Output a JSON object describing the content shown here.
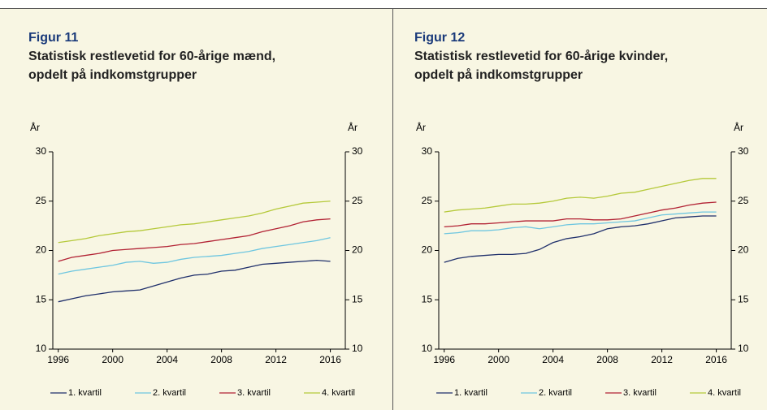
{
  "chart_data": [
    {
      "type": "line",
      "figure_label": "Figur 11",
      "title": [
        "Statistisk restlevetid for 60-årige mænd,",
        "opdelt på indkomstgrupper"
      ],
      "ylabel": "År",
      "y2label": "År",
      "x": [
        1996,
        1997,
        1998,
        1999,
        2000,
        2001,
        2002,
        2003,
        2004,
        2005,
        2006,
        2007,
        2008,
        2009,
        2010,
        2011,
        2012,
        2013,
        2014,
        2015,
        2016
      ],
      "xlim": [
        1995.6,
        2017.1
      ],
      "xticks": [
        1996,
        2000,
        2004,
        2008,
        2012,
        2016
      ],
      "ylim": [
        10,
        30
      ],
      "yticks": [
        10,
        15,
        20,
        25,
        30
      ],
      "y2lim": [
        10,
        30
      ],
      "y2ticks": [
        10,
        15,
        20,
        25,
        30
      ],
      "series": [
        {
          "name": "1. kvartil",
          "color": "#1f2f6b",
          "values": [
            14.8,
            15.1,
            15.4,
            15.6,
            15.8,
            15.9,
            16.0,
            16.4,
            16.8,
            17.2,
            17.5,
            17.6,
            17.9,
            18.0,
            18.3,
            18.6,
            18.7,
            18.8,
            18.9,
            19.0,
            18.9
          ]
        },
        {
          "name": "2. kvartil",
          "color": "#6ec6e0",
          "values": [
            17.6,
            17.9,
            18.1,
            18.3,
            18.5,
            18.8,
            18.9,
            18.7,
            18.8,
            19.1,
            19.3,
            19.4,
            19.5,
            19.7,
            19.9,
            20.2,
            20.4,
            20.6,
            20.8,
            21.0,
            21.3
          ]
        },
        {
          "name": "3. kvartil",
          "color": "#b22234",
          "values": [
            18.9,
            19.3,
            19.5,
            19.7,
            20.0,
            20.1,
            20.2,
            20.3,
            20.4,
            20.6,
            20.7,
            20.9,
            21.1,
            21.3,
            21.5,
            21.9,
            22.2,
            22.5,
            22.9,
            23.1,
            23.2
          ]
        },
        {
          "name": "4. kvartil",
          "color": "#b5c93a",
          "values": [
            20.8,
            21.0,
            21.2,
            21.5,
            21.7,
            21.9,
            22.0,
            22.2,
            22.4,
            22.6,
            22.7,
            22.9,
            23.1,
            23.3,
            23.5,
            23.8,
            24.2,
            24.5,
            24.8,
            24.9,
            25.0
          ]
        }
      ]
    },
    {
      "type": "line",
      "figure_label": "Figur 12",
      "title": [
        "Statistisk restlevetid for 60-årige kvinder,",
        "opdelt på indkomstgrupper"
      ],
      "ylabel": "År",
      "y2label": "År",
      "x": [
        1996,
        1997,
        1998,
        1999,
        2000,
        2001,
        2002,
        2003,
        2004,
        2005,
        2006,
        2007,
        2008,
        2009,
        2010,
        2011,
        2012,
        2013,
        2014,
        2015,
        2016
      ],
      "xlim": [
        1995.6,
        2017.1
      ],
      "xticks": [
        1996,
        2000,
        2004,
        2008,
        2012,
        2016
      ],
      "ylim": [
        10,
        30
      ],
      "yticks": [
        10,
        15,
        20,
        25,
        30
      ],
      "y2lim": [
        10,
        30
      ],
      "y2ticks": [
        10,
        15,
        20,
        25,
        30
      ],
      "series": [
        {
          "name": "1. kvartil",
          "color": "#1f2f6b",
          "values": [
            18.8,
            19.2,
            19.4,
            19.5,
            19.6,
            19.6,
            19.7,
            20.1,
            20.8,
            21.2,
            21.4,
            21.7,
            22.2,
            22.4,
            22.5,
            22.7,
            23.0,
            23.3,
            23.4,
            23.5,
            23.5
          ]
        },
        {
          "name": "2. kvartil",
          "color": "#6ec6e0",
          "values": [
            21.7,
            21.8,
            22.0,
            22.0,
            22.1,
            22.3,
            22.4,
            22.2,
            22.4,
            22.6,
            22.7,
            22.7,
            22.8,
            22.9,
            23.0,
            23.3,
            23.6,
            23.7,
            23.8,
            23.9,
            23.9
          ]
        },
        {
          "name": "3. kvartil",
          "color": "#b22234",
          "values": [
            22.4,
            22.5,
            22.7,
            22.7,
            22.8,
            22.9,
            23.0,
            23.0,
            23.0,
            23.2,
            23.2,
            23.1,
            23.1,
            23.2,
            23.5,
            23.8,
            24.1,
            24.3,
            24.6,
            24.8,
            24.9
          ]
        },
        {
          "name": "4. kvartil",
          "color": "#b5c93a",
          "values": [
            23.9,
            24.1,
            24.2,
            24.3,
            24.5,
            24.7,
            24.7,
            24.8,
            25.0,
            25.3,
            25.4,
            25.3,
            25.5,
            25.8,
            25.9,
            26.2,
            26.5,
            26.8,
            27.1,
            27.3,
            27.3
          ]
        }
      ]
    }
  ]
}
